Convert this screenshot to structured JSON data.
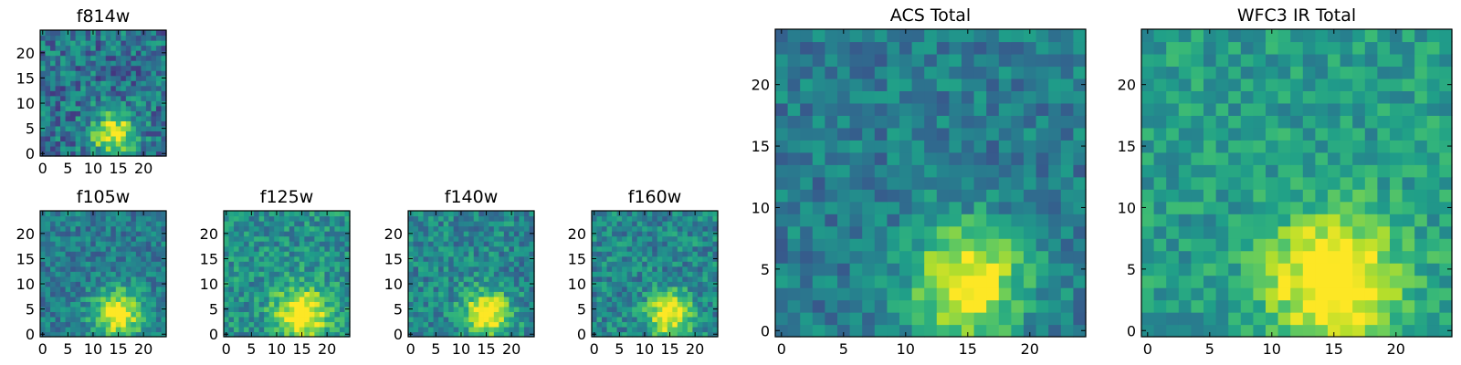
{
  "chart_data": [
    {
      "type": "heatmap",
      "title": "f814w",
      "size": 25,
      "x_ticks": [
        0,
        5,
        10,
        15,
        20
      ],
      "y_ticks": [
        0,
        5,
        10,
        15,
        20
      ],
      "x_tick_labels": [
        "0",
        "5",
        "10",
        "15",
        "20"
      ],
      "y_tick_labels": [
        "0",
        "5",
        "10",
        "15",
        "20"
      ],
      "xlim": [
        -0.5,
        24.5
      ],
      "ylim": [
        -0.5,
        24.5
      ],
      "colormap": "viridis",
      "source_peak": [
        14,
        4
      ],
      "source_sigma": 3.0,
      "noise": 0.22,
      "background": 0.38,
      "seed": 11
    },
    {
      "type": "heatmap",
      "title": "f105w",
      "size": 25,
      "x_ticks": [
        0,
        5,
        10,
        15,
        20
      ],
      "y_ticks": [
        0,
        5,
        10,
        15,
        20
      ],
      "x_tick_labels": [
        "0",
        "5",
        "10",
        "15",
        "20"
      ],
      "y_tick_labels": [
        "0",
        "5",
        "10",
        "15",
        "20"
      ],
      "xlim": [
        -0.5,
        24.5
      ],
      "ylim": [
        -0.5,
        24.5
      ],
      "colormap": "viridis",
      "source_peak": [
        15,
        4
      ],
      "source_sigma": 3.4,
      "noise": 0.16,
      "background": 0.42,
      "seed": 23
    },
    {
      "type": "heatmap",
      "title": "f125w",
      "size": 25,
      "x_ticks": [
        0,
        5,
        10,
        15,
        20
      ],
      "y_ticks": [
        0,
        5,
        10,
        15,
        20
      ],
      "x_tick_labels": [
        "0",
        "5",
        "10",
        "15",
        "20"
      ],
      "y_tick_labels": [
        "0",
        "5",
        "10",
        "15",
        "20"
      ],
      "xlim": [
        -0.5,
        24.5
      ],
      "ylim": [
        -0.5,
        24.5
      ],
      "colormap": "viridis",
      "source_peak": [
        15,
        4
      ],
      "source_sigma": 3.6,
      "noise": 0.18,
      "background": 0.5,
      "seed": 37
    },
    {
      "type": "heatmap",
      "title": "f140w",
      "size": 25,
      "x_ticks": [
        0,
        5,
        10,
        15,
        20
      ],
      "y_ticks": [
        0,
        5,
        10,
        15,
        20
      ],
      "x_tick_labels": [
        "0",
        "5",
        "10",
        "15",
        "20"
      ],
      "y_tick_labels": [
        "0",
        "5",
        "10",
        "15",
        "20"
      ],
      "xlim": [
        -0.5,
        24.5
      ],
      "ylim": [
        -0.5,
        24.5
      ],
      "colormap": "viridis",
      "source_peak": [
        15,
        4
      ],
      "source_sigma": 3.2,
      "noise": 0.18,
      "background": 0.46,
      "seed": 53
    },
    {
      "type": "heatmap",
      "title": "f160w",
      "size": 25,
      "x_ticks": [
        0,
        5,
        10,
        15,
        20
      ],
      "y_ticks": [
        0,
        5,
        10,
        15,
        20
      ],
      "x_tick_labels": [
        "0",
        "5",
        "10",
        "15",
        "20"
      ],
      "y_tick_labels": [
        "0",
        "5",
        "10",
        "15",
        "20"
      ],
      "xlim": [
        -0.5,
        24.5
      ],
      "ylim": [
        -0.5,
        24.5
      ],
      "colormap": "viridis",
      "source_peak": [
        15,
        4
      ],
      "source_sigma": 3.0,
      "noise": 0.18,
      "background": 0.46,
      "seed": 71
    },
    {
      "type": "heatmap",
      "title": "ACS Total",
      "size": 25,
      "x_ticks": [
        0,
        5,
        10,
        15,
        20
      ],
      "y_ticks": [
        0,
        5,
        10,
        15,
        20
      ],
      "x_tick_labels": [
        "0",
        "5",
        "10",
        "15",
        "20"
      ],
      "y_tick_labels": [
        "0",
        "5",
        "10",
        "15",
        "20"
      ],
      "xlim": [
        -0.5,
        24.5
      ],
      "ylim": [
        -0.5,
        24.5
      ],
      "colormap": "viridis",
      "source_peak": [
        15,
        4
      ],
      "source_sigma": 3.2,
      "noise": 0.15,
      "background": 0.42,
      "seed": 89
    },
    {
      "type": "heatmap",
      "title": "WFC3 IR Total",
      "size": 25,
      "x_ticks": [
        0,
        5,
        10,
        15,
        20
      ],
      "y_ticks": [
        0,
        5,
        10,
        15,
        20
      ],
      "x_tick_labels": [
        "0",
        "5",
        "10",
        "15",
        "20"
      ],
      "y_tick_labels": [
        "0",
        "5",
        "10",
        "15",
        "20"
      ],
      "xlim": [
        -0.5,
        24.5
      ],
      "ylim": [
        -0.5,
        24.5
      ],
      "colormap": "viridis",
      "source_peak": [
        15,
        4
      ],
      "source_sigma": 3.6,
      "noise": 0.14,
      "background": 0.55,
      "seed": 97
    }
  ]
}
